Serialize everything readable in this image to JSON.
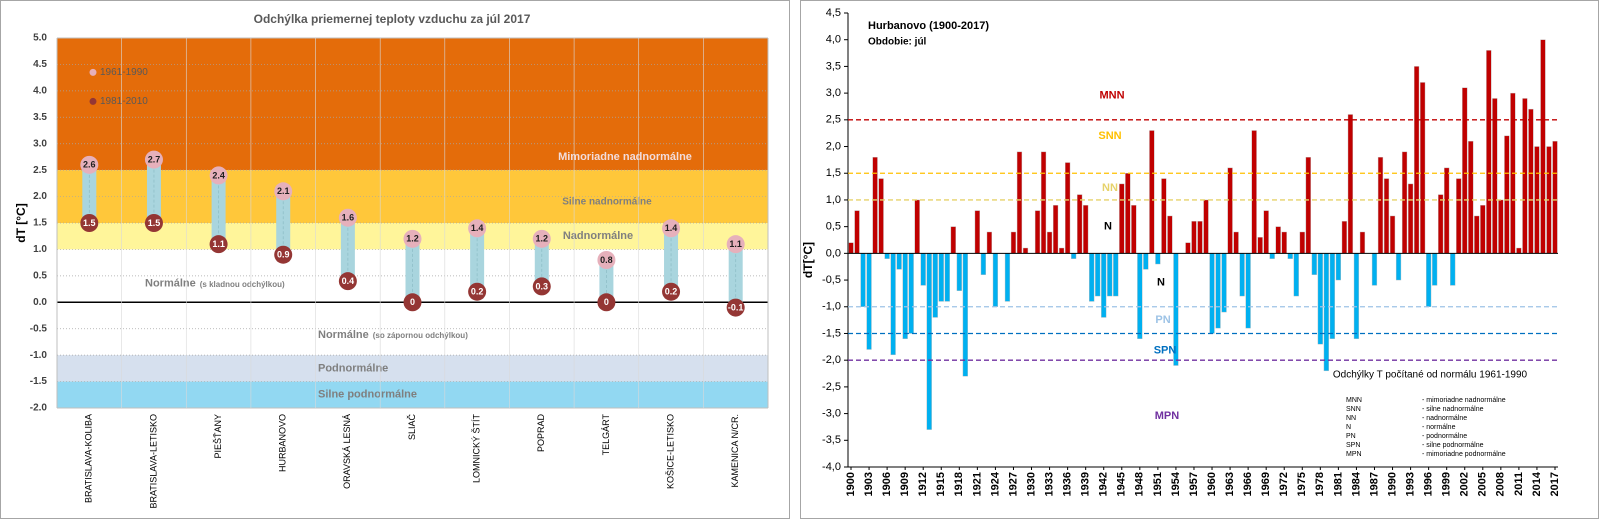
{
  "chart_data": [
    {
      "type": "dot",
      "title": "Odchýlka priemernej teploty vzduchu za júl 2017",
      "ylabel": "dT [°C]",
      "categories": [
        "BRATISLAVA-KOLIBA",
        "BRATISLAVA-LETISKO",
        "PIEŠŤANY",
        "HURBANOVO",
        "ORAVSKÁ LESNÁ",
        "SLIAČ",
        "LOMNICKÝ ŠTÍT",
        "POPRAD",
        "TELGÁRT",
        "KOŠICE-LETISKO",
        "KAMENICA N/CR."
      ],
      "series": [
        {
          "name": "1961-1990",
          "color": "#e6b0bb",
          "values": [
            2.6,
            2.7,
            2.4,
            2.1,
            1.6,
            1.2,
            1.4,
            1.2,
            0.8,
            1.4,
            1.1
          ]
        },
        {
          "name": "1981-2010",
          "color": "#943634",
          "values": [
            1.5,
            1.5,
            1.1,
            0.9,
            0.4,
            0,
            0.2,
            0.3,
            0,
            0.2,
            -0.1
          ]
        }
      ],
      "connector_color": "#a9d5de",
      "ylim": [
        -2,
        5
      ],
      "yticks": [
        {
          "value": 5,
          "label": "5.0"
        },
        {
          "value": 4.5,
          "label": "4.5"
        },
        {
          "value": 4,
          "label": "4.0"
        },
        {
          "value": 3.5,
          "label": "3.5"
        },
        {
          "value": 3,
          "label": "3.0"
        },
        {
          "value": 2.5,
          "label": "2.5"
        },
        {
          "value": 2,
          "label": "2.0"
        },
        {
          "value": 1.5,
          "label": "1.5"
        },
        {
          "value": 1,
          "label": "1.0"
        },
        {
          "value": 0.5,
          "label": "0.5"
        },
        {
          "value": 0,
          "label": "0.0"
        },
        {
          "value": -0.5,
          "label": "-0.5"
        },
        {
          "value": -1,
          "label": "-1.0"
        },
        {
          "value": -1.5,
          "label": "-1.5"
        },
        {
          "value": -2,
          "label": "-2.0"
        }
      ],
      "grid": true,
      "legend": "upper left",
      "bands": [
        {
          "from": 2.5,
          "to": 5,
          "color": "#e46c0a",
          "label": "Mimoriadne nadnormálne"
        },
        {
          "from": 1.5,
          "to": 2.5,
          "color": "#ffc73a",
          "label": "Silne nadnormálne"
        },
        {
          "from": 1,
          "to": 1.5,
          "color": "#fff59a",
          "label": "Nadnormálne"
        },
        {
          "from": 0,
          "to": 1,
          "color": "#ffffff",
          "label": "Normálne",
          "note": "(s kladnou odchýlkou)"
        },
        {
          "from": -1,
          "to": 0,
          "color": "#ffffff",
          "label": "Normálne",
          "note": "(so zápornou odchýlkou)"
        },
        {
          "from": -1.5,
          "to": -1,
          "color": "#d6e0ee",
          "label": "Podnormálne"
        },
        {
          "from": -2,
          "to": -1.5,
          "color": "#92d8f2",
          "label": "Silne podnormálne"
        }
      ]
    },
    {
      "type": "bar",
      "title": "Hurbanovo (1900-2017)",
      "subtitle": "Obdobie: júl",
      "ylabel": "dT[°C]",
      "x": [
        1900,
        1901,
        1902,
        1903,
        1904,
        1905,
        1906,
        1907,
        1908,
        1909,
        1910,
        1911,
        1912,
        1913,
        1914,
        1915,
        1916,
        1917,
        1918,
        1919,
        1920,
        1921,
        1922,
        1923,
        1924,
        1925,
        1926,
        1927,
        1928,
        1929,
        1930,
        1931,
        1932,
        1933,
        1934,
        1935,
        1936,
        1937,
        1938,
        1939,
        1940,
        1941,
        1942,
        1943,
        1944,
        1945,
        1946,
        1947,
        1948,
        1949,
        1950,
        1951,
        1952,
        1953,
        1954,
        1955,
        1956,
        1957,
        1958,
        1959,
        1960,
        1961,
        1962,
        1963,
        1964,
        1965,
        1966,
        1967,
        1968,
        1969,
        1970,
        1971,
        1972,
        1973,
        1974,
        1975,
        1976,
        1977,
        1978,
        1979,
        1980,
        1981,
        1982,
        1983,
        1984,
        1985,
        1986,
        1987,
        1988,
        1989,
        1990,
        1991,
        1992,
        1993,
        1994,
        1995,
        1996,
        1997,
        1998,
        1999,
        2000,
        2001,
        2002,
        2003,
        2004,
        2005,
        2006,
        2007,
        2008,
        2009,
        2010,
        2011,
        2012,
        2013,
        2014,
        2015,
        2016,
        2017
      ],
      "values": [
        0.2,
        0.8,
        -1.0,
        -1.8,
        1.8,
        1.4,
        -0.1,
        -1.9,
        -0.3,
        -1.6,
        -1.5,
        1.0,
        -0.6,
        -3.3,
        -1.2,
        -0.9,
        -0.9,
        0.5,
        -0.7,
        -2.3,
        0,
        0.8,
        -0.4,
        0.4,
        -1.0,
        0,
        -0.9,
        0.4,
        1.9,
        0.1,
        0,
        0.8,
        1.9,
        0.4,
        0.9,
        0.1,
        1.7,
        -0.1,
        1.1,
        0.9,
        -0.9,
        -0.8,
        -1.2,
        -0.8,
        -0.8,
        1.3,
        1.5,
        0.9,
        -1.6,
        -0.3,
        2.3,
        -0.2,
        1.4,
        0.7,
        -2.1,
        0,
        0.2,
        0.6,
        0.6,
        1.0,
        -1.5,
        -1.4,
        -1.1,
        1.6,
        0.4,
        -0.8,
        -1.4,
        2.3,
        0.3,
        0.8,
        -0.1,
        0.5,
        0.4,
        -0.1,
        -0.8,
        0.4,
        1.8,
        -0.4,
        -1.7,
        -2.2,
        -1.6,
        -0.5,
        0.6,
        2.6,
        -1.6,
        0.4,
        0,
        -0.6,
        1.8,
        1.4,
        0.7,
        -0.5,
        1.9,
        1.3,
        3.5,
        3.2,
        -1.0,
        -0.6,
        1.1,
        1.6,
        -0.6,
        1.4,
        3.1,
        2.1,
        0.7,
        0.9,
        3.8,
        2.9,
        1.0,
        2.2,
        3.0,
        0.1,
        2.9,
        2.7,
        2.0,
        4.0,
        2.0,
        2.1
      ],
      "positive_color": "#c00000",
      "negative_color": "#00b0f0",
      "xlim": [
        1900,
        2017
      ],
      "xticks": [
        1900,
        1903,
        1906,
        1909,
        1912,
        1915,
        1918,
        1921,
        1924,
        1927,
        1930,
        1933,
        1936,
        1939,
        1942,
        1945,
        1948,
        1951,
        1954,
        1957,
        1960,
        1963,
        1966,
        1969,
        1972,
        1975,
        1978,
        1981,
        1984,
        1987,
        1990,
        1993,
        1996,
        1999,
        2002,
        2005,
        2008,
        2011,
        2014,
        2017
      ],
      "ylim": [
        -4,
        4.5
      ],
      "yticks": [
        {
          "value": 4.5,
          "label": "4,5"
        },
        {
          "value": 4,
          "label": "4,0"
        },
        {
          "value": 3.5,
          "label": "3,5"
        },
        {
          "value": 3,
          "label": "3,0"
        },
        {
          "value": 2.5,
          "label": "2,5"
        },
        {
          "value": 2,
          "label": "2,0"
        },
        {
          "value": 1.5,
          "label": "1,5"
        },
        {
          "value": 1,
          "label": "1,0"
        },
        {
          "value": 0.5,
          "label": "0,5"
        },
        {
          "value": 0,
          "label": "0,0"
        },
        {
          "value": -0.5,
          "label": "-0,5"
        },
        {
          "value": -1,
          "label": "-1,0"
        },
        {
          "value": -1.5,
          "label": "-1,5"
        },
        {
          "value": -2,
          "label": "-2,0"
        },
        {
          "value": -2.5,
          "label": "-2,5"
        },
        {
          "value": -3,
          "label": "-3,0"
        },
        {
          "value": -3.5,
          "label": "-3,5"
        },
        {
          "value": -4,
          "label": "-4,0"
        }
      ],
      "grid": false,
      "reference_lines": [
        {
          "value": 2.5,
          "label": "MNN",
          "color": "#c00000"
        },
        {
          "value": 1.5,
          "label": "SNN",
          "color": "#ffc000"
        },
        {
          "value": 1,
          "label": "NN",
          "color": "#e6d26a"
        },
        {
          "value": -1,
          "label": "PN",
          "color": "#9dc3e6"
        },
        {
          "value": -1.5,
          "label": "SPN",
          "color": "#0070c0"
        },
        {
          "value": -2,
          "label": "MPN",
          "color": "#7030a0"
        }
      ],
      "normal_label": "N",
      "note": "Odchýlky T počítané od normálu 1961-1990",
      "key": [
        {
          "abbr": "MNN",
          "text": "- mimoriadne nadnormálne"
        },
        {
          "abbr": "SNN",
          "text": "- silne nadnormálne"
        },
        {
          "abbr": "NN",
          "text": "- nadnormálne"
        },
        {
          "abbr": "N",
          "text": "- normálne"
        },
        {
          "abbr": "PN",
          "text": "- podnormálne"
        },
        {
          "abbr": "SPN",
          "text": "- silne podnormálne"
        },
        {
          "abbr": "MPN",
          "text": "- mimoriadne podnormálne"
        }
      ]
    }
  ]
}
